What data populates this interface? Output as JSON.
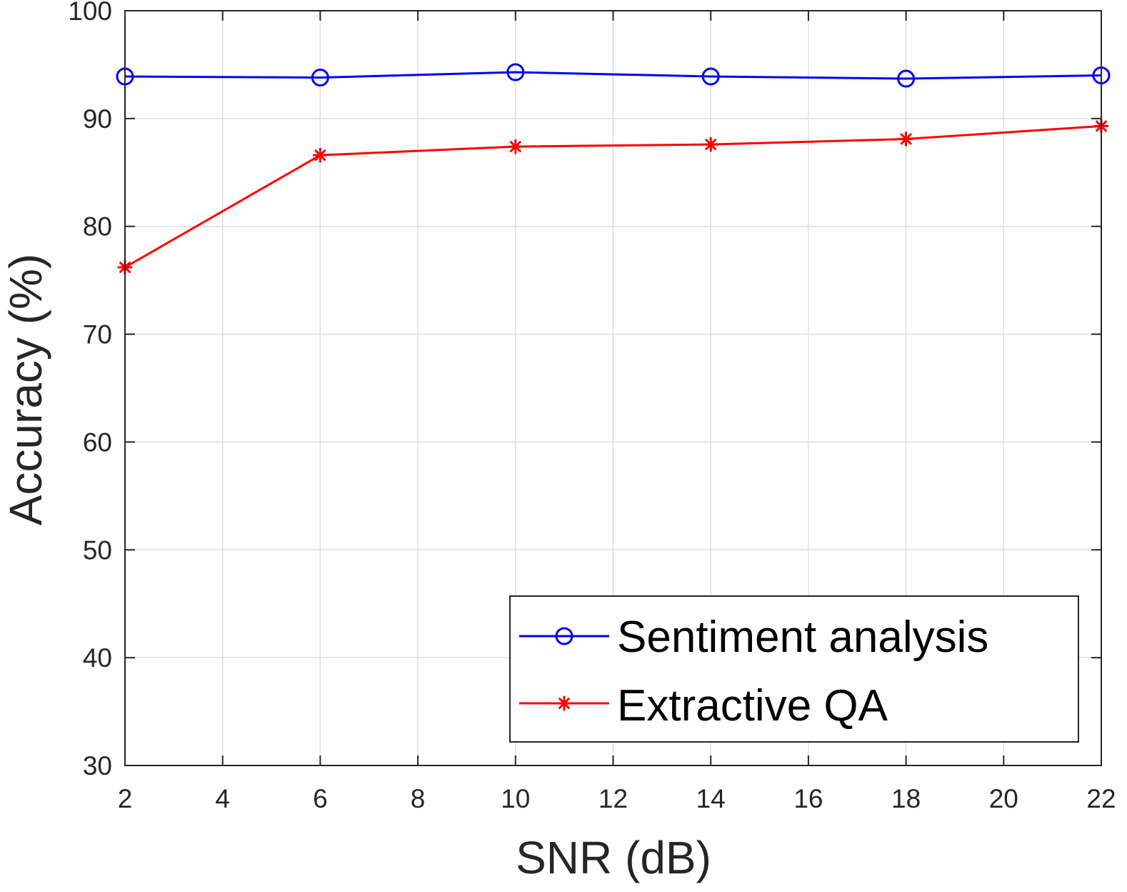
{
  "chart_data": {
    "type": "line",
    "title": "",
    "xlabel": "SNR (dB)",
    "ylabel": "Accuracy (%)",
    "xlim": [
      2,
      22
    ],
    "ylim": [
      30,
      100
    ],
    "xticks": [
      2,
      4,
      6,
      8,
      10,
      12,
      14,
      16,
      18,
      20,
      22
    ],
    "yticks": [
      30,
      40,
      50,
      60,
      70,
      80,
      90,
      100
    ],
    "grid": true,
    "legend_position": "bottom-right",
    "x": [
      2,
      6,
      10,
      14,
      18,
      22
    ],
    "series": [
      {
        "name": "Sentiment analysis",
        "values": [
          93.9,
          93.8,
          94.3,
          93.9,
          93.7,
          94.0
        ],
        "color": "#0000ff",
        "marker": "circle"
      },
      {
        "name": "Extractive QA",
        "values": [
          76.2,
          86.6,
          87.4,
          87.6,
          88.1,
          89.3
        ],
        "color": "#ff0000",
        "marker": "asterisk"
      }
    ]
  }
}
